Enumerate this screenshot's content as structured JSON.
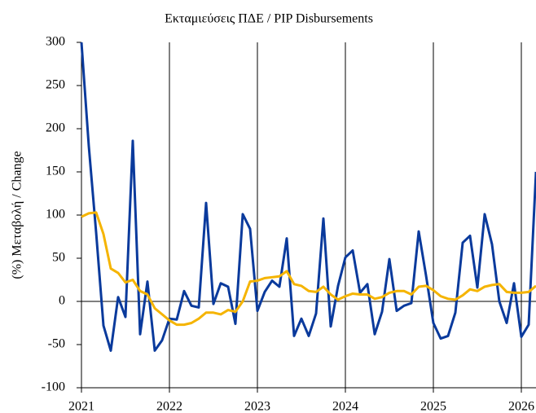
{
  "chart_data": {
    "type": "line",
    "title": "Εκταμιεύσεις ΠΔΕ / PIP Disbursements",
    "y_label": "(%) Μεταβολή / Change",
    "categories": [
      "2021",
      null,
      null,
      null,
      null,
      null,
      null,
      null,
      null,
      null,
      null,
      null,
      "2022",
      null,
      null,
      null,
      null,
      null,
      null,
      null,
      null,
      null,
      null,
      null,
      "2023",
      null,
      null,
      null,
      null,
      null,
      null,
      null,
      null,
      null,
      null,
      null,
      "2024",
      null,
      null,
      null,
      null,
      null,
      null,
      null,
      null,
      null,
      null,
      null,
      "2025",
      null,
      null,
      null,
      null,
      null,
      null,
      null,
      null,
      null,
      null,
      null,
      "2026",
      null,
      null
    ],
    "series": [
      {
        "color": "#0a3a9c",
        "values": [
          300,
          180,
          80,
          -28,
          -57,
          5,
          -18,
          186,
          -38,
          23,
          -57,
          -45,
          -20,
          -21,
          12,
          -5,
          -7,
          114,
          -3,
          21,
          17,
          -26,
          101,
          84,
          -11,
          11,
          24,
          17,
          73,
          -40,
          -20,
          -40,
          -14,
          96,
          -29,
          18,
          51,
          59,
          10,
          20,
          -38,
          -12,
          49,
          -11,
          -5,
          -2,
          81,
          30,
          -25,
          -43,
          -40,
          -13,
          68,
          76,
          16,
          101,
          66,
          0,
          -25,
          21,
          -41,
          -27,
          150
        ]
      },
      {
        "color": "#f5b400",
        "values": [
          98,
          102,
          103,
          78,
          38,
          33,
          22,
          25,
          12,
          8,
          -8,
          -15,
          -22,
          -27,
          -27,
          -25,
          -20,
          -13,
          -13,
          -15,
          -10,
          -12,
          0,
          23,
          24,
          27,
          28,
          29,
          35,
          20,
          18,
          12,
          11,
          17,
          8,
          2,
          6,
          9,
          8,
          8,
          3,
          5,
          10,
          12,
          12,
          8,
          17,
          18,
          13,
          6,
          3,
          2,
          7,
          14,
          12,
          17,
          19,
          20,
          11,
          10,
          10,
          11,
          18
        ]
      }
    ],
    "ylim": [
      -100,
      300
    ],
    "yticks": [
      -100,
      -50,
      0,
      50,
      100,
      150,
      200,
      250,
      300
    ]
  }
}
